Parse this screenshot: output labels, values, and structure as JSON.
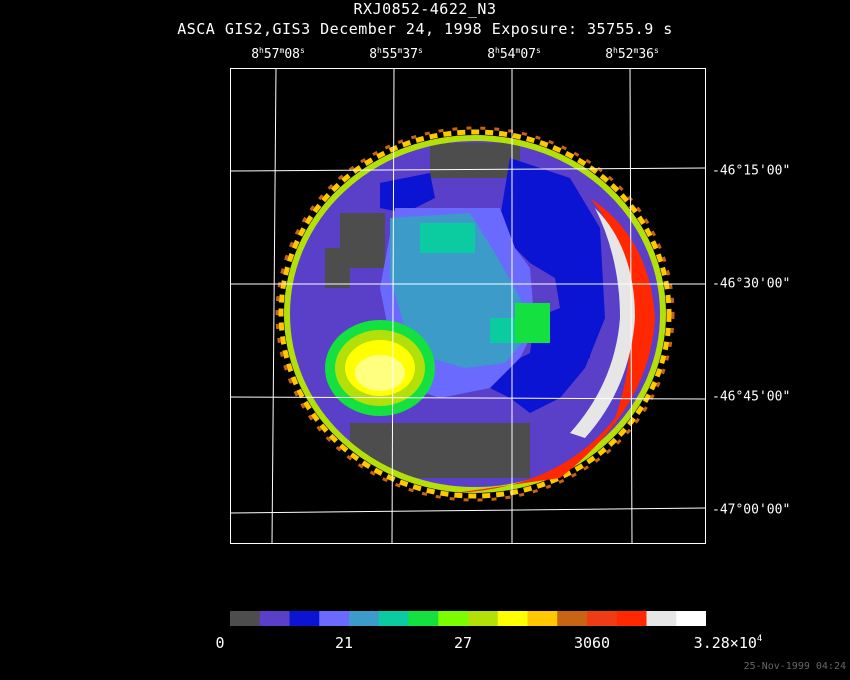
{
  "header": {
    "title": "RXJ0852-4622_N3",
    "subtitle": "ASCA GIS2,GIS3 December 24, 1998 Exposure: 35755.9 s"
  },
  "ra_labels": [
    {
      "h": "8",
      "m": "57",
      "s": "08"
    },
    {
      "h": "8",
      "m": "55",
      "s": "37"
    },
    {
      "h": "8",
      "m": "54",
      "s": "07"
    },
    {
      "h": "8",
      "m": "52",
      "s": "36"
    }
  ],
  "dec_labels": [
    "-46°15'00\"",
    "-46°30'00\"",
    "-46°45'00\"",
    "-47°00'00\""
  ],
  "colorbar": {
    "colors": [
      "#4d4d4d",
      "#5a3fc8",
      "#0a14d2",
      "#6a6aff",
      "#3c9bc8",
      "#0acca0",
      "#14e040",
      "#7cfc00",
      "#b4e00a",
      "#ffff00",
      "#ffc800",
      "#c86414",
      "#f03c14",
      "#ff2800",
      "#e6e6e6",
      "#ffffff"
    ],
    "labels": [
      "0",
      "21",
      "27",
      "3060"
    ],
    "max_mantissa": "3.28×10",
    "max_exp": "4"
  },
  "timestamp": "25-Nov-1999 04:24"
}
